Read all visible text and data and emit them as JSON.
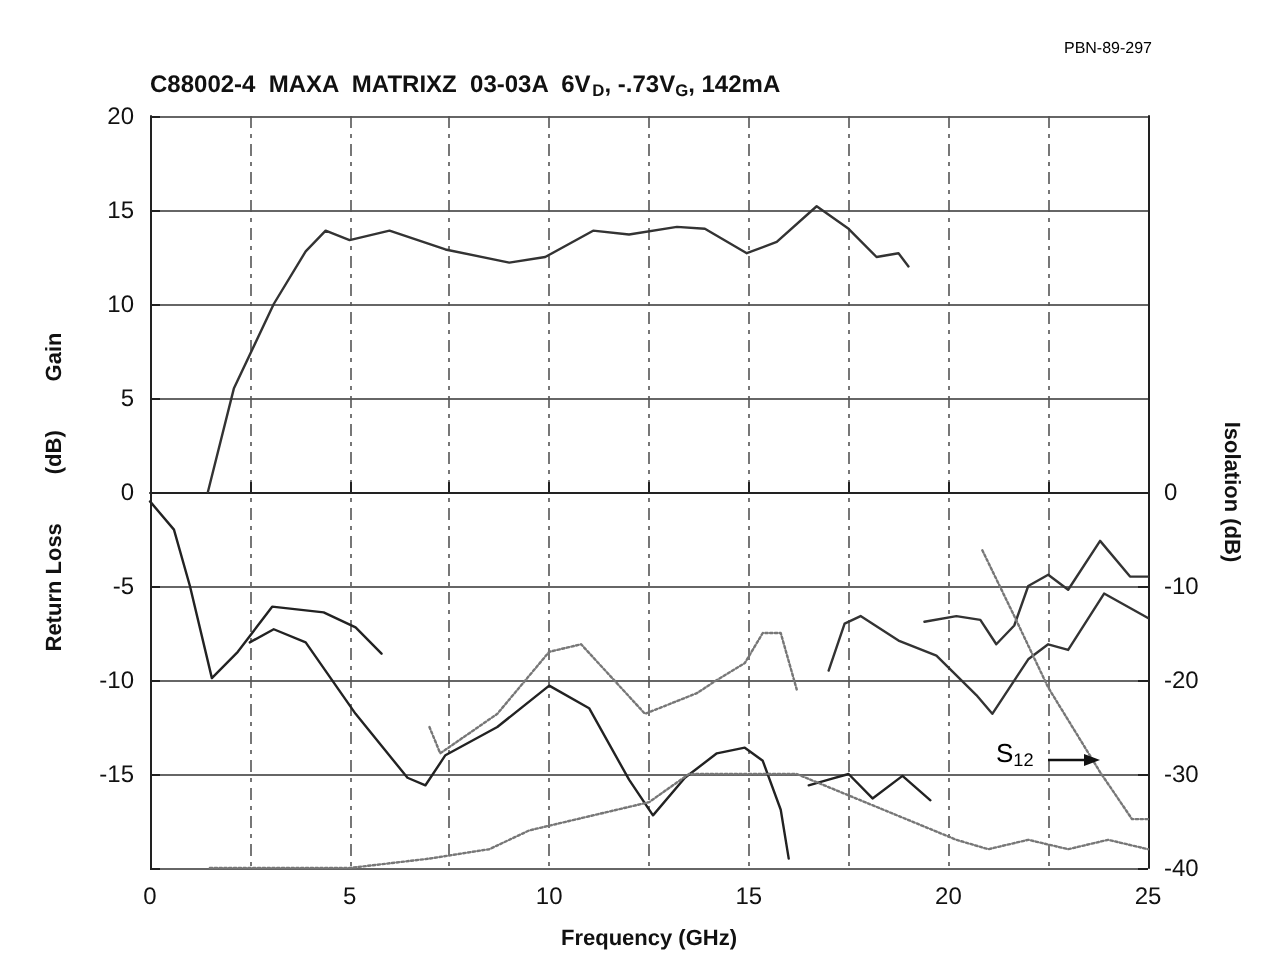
{
  "chart_data": {
    "type": "line",
    "title": "C88002-4  MAXA  MATRIXZ  03-03A  6V$_{D}$, -.73V$_{G}$, 142mA",
    "xlabel": "Frequency (GHz)",
    "ylabel": "Return Loss        (dB)        Gain",
    "y2label": "Isolation (dB)",
    "annotations": [
      "PBN-89-297",
      "S$_{12}$"
    ],
    "xlim": [
      0,
      25
    ],
    "xticks": [
      0,
      {
        "value": 2.5,
        "label": null
      },
      5,
      {
        "value": 7.5,
        "label": null
      },
      10,
      {
        "value": 12.5,
        "label": null
      },
      15,
      {
        "value": 17.5,
        "label": null
      },
      20,
      {
        "value": 22.5,
        "label": null
      },
      25
    ],
    "ylim": [
      -20,
      20
    ],
    "yticks": [
      {
        "value": -20,
        "label": null
      },
      -15,
      -10,
      -5,
      0,
      5,
      10,
      15,
      20
    ],
    "y2lim": [
      -40,
      40
    ],
    "y2ticks": [
      -40,
      -30,
      -20,
      -10,
      0
    ],
    "grid": true,
    "marker": "none",
    "series": [
      {
        "color": "#333333",
        "line_style": "solid",
        "x": [
          1.45,
          2.1,
          3.1,
          3.9,
          4.4,
          5.0,
          6.0,
          7.4,
          9.0,
          9.9,
          11.1,
          12.0,
          13.2,
          13.9,
          14.95,
          15.7,
          16.7,
          17.5,
          18.2,
          18.75,
          19.0
        ],
        "values": [
          0,
          5.5,
          10,
          12.8,
          13.9,
          13.4,
          13.9,
          12.9,
          12.2,
          12.5,
          13.9,
          13.7,
          14.1,
          14.0,
          12.7,
          13.3,
          15.2,
          14.0,
          12.5,
          12.7,
          12.0
        ]
      },
      {
        "color": "#222222",
        "line_style": "solid",
        "x": [
          0,
          0.6,
          1.0,
          1.55,
          2.2,
          3.06,
          4.35,
          5.15,
          5.8
        ],
        "values": [
          -0.5,
          -2,
          -5,
          -9.9,
          -8.5,
          -6.1,
          -6.4,
          -7.2,
          -8.6
        ]
      },
      {
        "color": "#777777",
        "line_style": "dotted",
        "x": [
          7.0,
          7.27,
          8.7,
          10.0,
          10.8,
          12.4,
          13.7,
          14.2,
          14.9,
          15.35,
          15.8,
          16.2
        ],
        "values": [
          -12.5,
          -13.9,
          -11.8,
          -8.5,
          -8.1,
          -11.8,
          -10.7,
          -10.0,
          -9.1,
          -7.5,
          -7.5,
          -10.5
        ]
      },
      {
        "color": "#222222",
        "line_style": "solid",
        "x": [
          2.5,
          3.1,
          3.9,
          5.15,
          6.45,
          6.9,
          7.4,
          8.7,
          10.0,
          11.0,
          12.0,
          12.6,
          13.4,
          14.2,
          14.9,
          15.35,
          15.8,
          16.0
        ],
        "values": [
          -8.0,
          -7.3,
          -8.0,
          -11.8,
          -15.2,
          -15.6,
          -14.0,
          -12.5,
          -10.3,
          -11.5,
          -15.3,
          -17.2,
          -15.2,
          -13.9,
          -13.6,
          -14.3,
          -16.9,
          -19.5
        ]
      },
      {
        "color": "#222222",
        "line_style": "solid",
        "x": [
          16.5,
          17.0,
          17.5,
          18.1,
          18.85,
          19.55
        ],
        "values": [
          -15.6,
          -15.3,
          -15.0,
          -16.3,
          -15.1,
          -16.4
        ]
      },
      {
        "color": "#333333",
        "line_style": "solid",
        "x": [
          17.0,
          17.4,
          17.8,
          18.75,
          19.7,
          20.7,
          21.1,
          22.0,
          22.5,
          23.0,
          23.9,
          25.0
        ],
        "values": [
          -9.5,
          -7.0,
          -6.6,
          -7.9,
          -8.7,
          -10.8,
          -11.8,
          -8.9,
          -8.1,
          -8.4,
          -5.4,
          -6.7
        ]
      },
      {
        "color": "#333333",
        "line_style": "solid",
        "x": [
          19.4,
          20.2,
          20.8,
          21.2,
          21.65,
          22.0,
          22.5,
          23.0,
          23.8,
          24.55,
          25.0
        ],
        "values": [
          -6.9,
          -6.6,
          -6.8,
          -8.1,
          -7.1,
          -5.0,
          -4.4,
          -5.2,
          -2.6,
          -4.5,
          -4.5
        ]
      },
      {
        "color": "#777777",
        "line_style": "dotted",
        "x": [
          20.85,
          21.65,
          22.5,
          23.8,
          24.6,
          25.0
        ],
        "values": [
          -3.1,
          -6.6,
          -10.4,
          -14.9,
          -17.4,
          -17.4
        ]
      },
      {
        "color": "#777777",
        "line_style": "dotted",
        "axis": "y2",
        "x": [
          1.5,
          3,
          5,
          7,
          8.5,
          9.5,
          10.5,
          11.5,
          12.5,
          13.5,
          14.5,
          15.5,
          16.2,
          20.2,
          21,
          22,
          23,
          24,
          25
        ],
        "values": [
          -40,
          -40,
          -40,
          -39,
          -38,
          -36,
          -35,
          -34,
          -33,
          -30,
          -30,
          -30,
          -30,
          -37,
          -38,
          -37,
          -38,
          -37,
          -38
        ]
      }
    ]
  }
}
